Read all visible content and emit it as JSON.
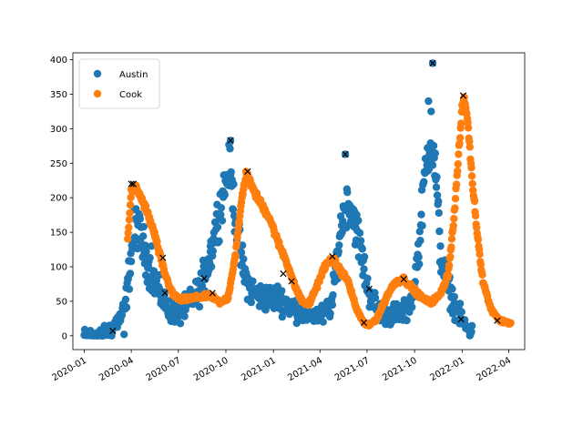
{
  "chart_data": {
    "type": "scatter",
    "title": "",
    "xlabel": "",
    "ylabel": "",
    "xlim": [
      "2019-12-10",
      "2022-05-02"
    ],
    "ylim": [
      -20,
      410
    ],
    "x_ticks": [
      "2020-01-01",
      "2020-04-01",
      "2020-07-01",
      "2020-10-01",
      "2021-01-01",
      "2021-04-01",
      "2021-07-01",
      "2021-10-01",
      "2022-01-01",
      "2022-04-01"
    ],
    "x_tick_labels": [
      "2020-01",
      "2020-04",
      "2020-07",
      "2020-10",
      "2021-01",
      "2021-04",
      "2021-07",
      "2021-10",
      "2022-01",
      "2022-04"
    ],
    "y_ticks": [
      0,
      50,
      100,
      150,
      200,
      250,
      300,
      350,
      400
    ],
    "y_tick_labels": [
      "0",
      "50",
      "100",
      "150",
      "200",
      "250",
      "300",
      "350",
      "400"
    ],
    "grid": false,
    "legend_position": "top-left",
    "series": [
      {
        "name": "Austin",
        "color": "#1f77b4",
        "marker": "circle",
        "curve": [
          [
            "2020-01-01",
            0
          ],
          [
            "2020-02-05",
            0
          ],
          [
            "2020-02-25",
            12
          ],
          [
            "2020-03-10",
            25
          ],
          [
            "2020-03-20",
            40
          ],
          [
            "2020-04-01",
            120
          ],
          [
            "2020-04-10",
            165
          ],
          [
            "2020-04-20",
            140
          ],
          [
            "2020-05-05",
            100
          ],
          [
            "2020-05-20",
            70
          ],
          [
            "2020-06-10",
            40
          ],
          [
            "2020-07-01",
            30
          ],
          [
            "2020-07-20",
            45
          ],
          [
            "2020-08-10",
            65
          ],
          [
            "2020-08-30",
            110
          ],
          [
            "2020-09-15",
            170
          ],
          [
            "2020-09-28",
            215
          ],
          [
            "2020-10-08",
            245
          ],
          [
            "2020-10-15",
            200
          ],
          [
            "2020-10-25",
            140
          ],
          [
            "2020-11-05",
            90
          ],
          [
            "2020-11-20",
            65
          ],
          [
            "2020-12-10",
            55
          ],
          [
            "2021-01-10",
            55
          ],
          [
            "2021-02-10",
            40
          ],
          [
            "2021-03-10",
            30
          ],
          [
            "2021-04-10",
            30
          ],
          [
            "2021-04-25",
            50
          ],
          [
            "2021-05-05",
            120
          ],
          [
            "2021-05-15",
            175
          ],
          [
            "2021-05-25",
            195
          ],
          [
            "2021-06-05",
            175
          ],
          [
            "2021-06-20",
            120
          ],
          [
            "2021-07-01",
            70
          ],
          [
            "2021-07-20",
            40
          ],
          [
            "2021-08-15",
            30
          ],
          [
            "2021-09-15",
            35
          ],
          [
            "2021-10-01",
            70
          ],
          [
            "2021-10-12",
            150
          ],
          [
            "2021-10-22",
            245
          ],
          [
            "2021-11-01",
            280
          ],
          [
            "2021-11-10",
            245
          ],
          [
            "2021-11-20",
            120
          ],
          [
            "2021-12-05",
            70
          ],
          [
            "2021-12-20",
            40
          ],
          [
            "2022-01-05",
            15
          ],
          [
            "2022-01-20",
            5
          ]
        ],
        "jitter": 38,
        "outliers": [
          [
            "2020-03-18",
            2
          ],
          [
            "2020-04-05",
            218
          ],
          [
            "2020-10-10",
            283
          ],
          [
            "2021-05-20",
            263
          ],
          [
            "2021-11-05",
            395
          ],
          [
            "2020-05-10",
            130
          ],
          [
            "2020-09-01",
            130
          ],
          [
            "2021-10-28",
            340
          ],
          [
            "2021-11-02",
            325
          ]
        ]
      },
      {
        "name": "Cook",
        "color": "#ff7f0e",
        "marker": "circle",
        "curve": [
          [
            "2020-03-25",
            140
          ],
          [
            "2020-04-01",
            210
          ],
          [
            "2020-04-10",
            215
          ],
          [
            "2020-04-20",
            200
          ],
          [
            "2020-05-01",
            180
          ],
          [
            "2020-05-15",
            150
          ],
          [
            "2020-05-25",
            120
          ],
          [
            "2020-06-05",
            90
          ],
          [
            "2020-06-20",
            60
          ],
          [
            "2020-07-05",
            52
          ],
          [
            "2020-08-01",
            55
          ],
          [
            "2020-09-01",
            58
          ],
          [
            "2020-09-20",
            48
          ],
          [
            "2020-10-05",
            55
          ],
          [
            "2020-10-20",
            120
          ],
          [
            "2020-11-01",
            200
          ],
          [
            "2020-11-10",
            238
          ],
          [
            "2020-11-20",
            215
          ],
          [
            "2020-12-05",
            195
          ],
          [
            "2020-12-25",
            170
          ],
          [
            "2021-01-10",
            135
          ],
          [
            "2021-01-25",
            110
          ],
          [
            "2021-02-10",
            75
          ],
          [
            "2021-02-25",
            50
          ],
          [
            "2021-03-10",
            45
          ],
          [
            "2021-03-25",
            70
          ],
          [
            "2021-04-10",
            100
          ],
          [
            "2021-04-25",
            112
          ],
          [
            "2021-05-10",
            95
          ],
          [
            "2021-05-25",
            80
          ],
          [
            "2021-06-10",
            40
          ],
          [
            "2021-06-25",
            18
          ],
          [
            "2021-07-05",
            15
          ],
          [
            "2021-07-20",
            25
          ],
          [
            "2021-08-10",
            60
          ],
          [
            "2021-08-25",
            78
          ],
          [
            "2021-09-10",
            82
          ],
          [
            "2021-09-25",
            70
          ],
          [
            "2021-10-15",
            55
          ],
          [
            "2021-11-01",
            48
          ],
          [
            "2021-11-20",
            60
          ],
          [
            "2021-12-05",
            90
          ],
          [
            "2021-12-15",
            160
          ],
          [
            "2021-12-25",
            260
          ],
          [
            "2022-01-01",
            330
          ],
          [
            "2022-01-05",
            345
          ],
          [
            "2022-01-12",
            310
          ],
          [
            "2022-01-20",
            230
          ],
          [
            "2022-01-30",
            150
          ],
          [
            "2022-02-10",
            80
          ],
          [
            "2022-02-25",
            40
          ],
          [
            "2022-03-15",
            22
          ],
          [
            "2022-04-05",
            18
          ]
        ],
        "jitter": 6,
        "outliers": []
      },
      {
        "name": "",
        "color": "#000000",
        "marker": "x",
        "points": [
          [
            "2020-02-25",
            7
          ],
          [
            "2020-04-01",
            220
          ],
          [
            "2020-04-05",
            220
          ],
          [
            "2020-06-01",
            113
          ],
          [
            "2020-06-05",
            62
          ],
          [
            "2020-08-20",
            83
          ],
          [
            "2020-09-05",
            62
          ],
          [
            "2020-10-10",
            283
          ],
          [
            "2020-11-12",
            238
          ],
          [
            "2021-01-20",
            90
          ],
          [
            "2021-02-05",
            79
          ],
          [
            "2021-04-25",
            115
          ],
          [
            "2021-05-20",
            263
          ],
          [
            "2021-06-25",
            19
          ],
          [
            "2021-07-05",
            68
          ],
          [
            "2021-09-10",
            82
          ],
          [
            "2021-11-05",
            395
          ],
          [
            "2021-12-30",
            24
          ],
          [
            "2022-01-03",
            348
          ],
          [
            "2022-03-10",
            22
          ]
        ]
      }
    ]
  }
}
